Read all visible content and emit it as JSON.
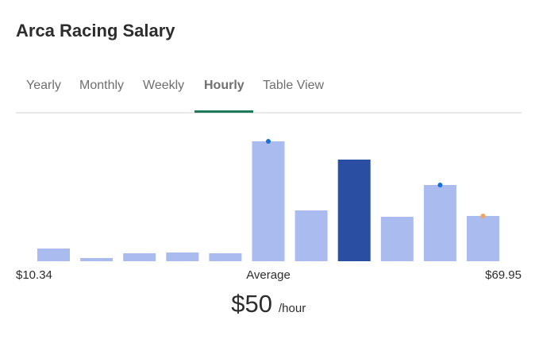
{
  "header": {
    "title": "Arca Racing Salary"
  },
  "tabs": [
    "Yearly",
    "Monthly",
    "Weekly",
    "Hourly",
    "Table View"
  ],
  "active_tab": 3,
  "chart_data": {
    "type": "bar",
    "values": [
      16,
      4,
      10,
      11,
      10,
      151,
      64,
      128,
      56,
      96,
      57
    ],
    "color": "#a9bbef",
    "highlight": {
      "index": 7,
      "color": "#2a4ea2"
    },
    "markers": [
      {
        "index": 5,
        "color": "#1a6fd8"
      },
      {
        "index": 9,
        "color": "#1a6fd8"
      },
      {
        "index": 10,
        "color": "#f5a25d"
      }
    ],
    "ylim": [
      0,
      160
    ],
    "min_label": "$10.34",
    "average_label": "Average",
    "max_label": "$69.95",
    "average_value": "$50",
    "unit": "/hour"
  }
}
